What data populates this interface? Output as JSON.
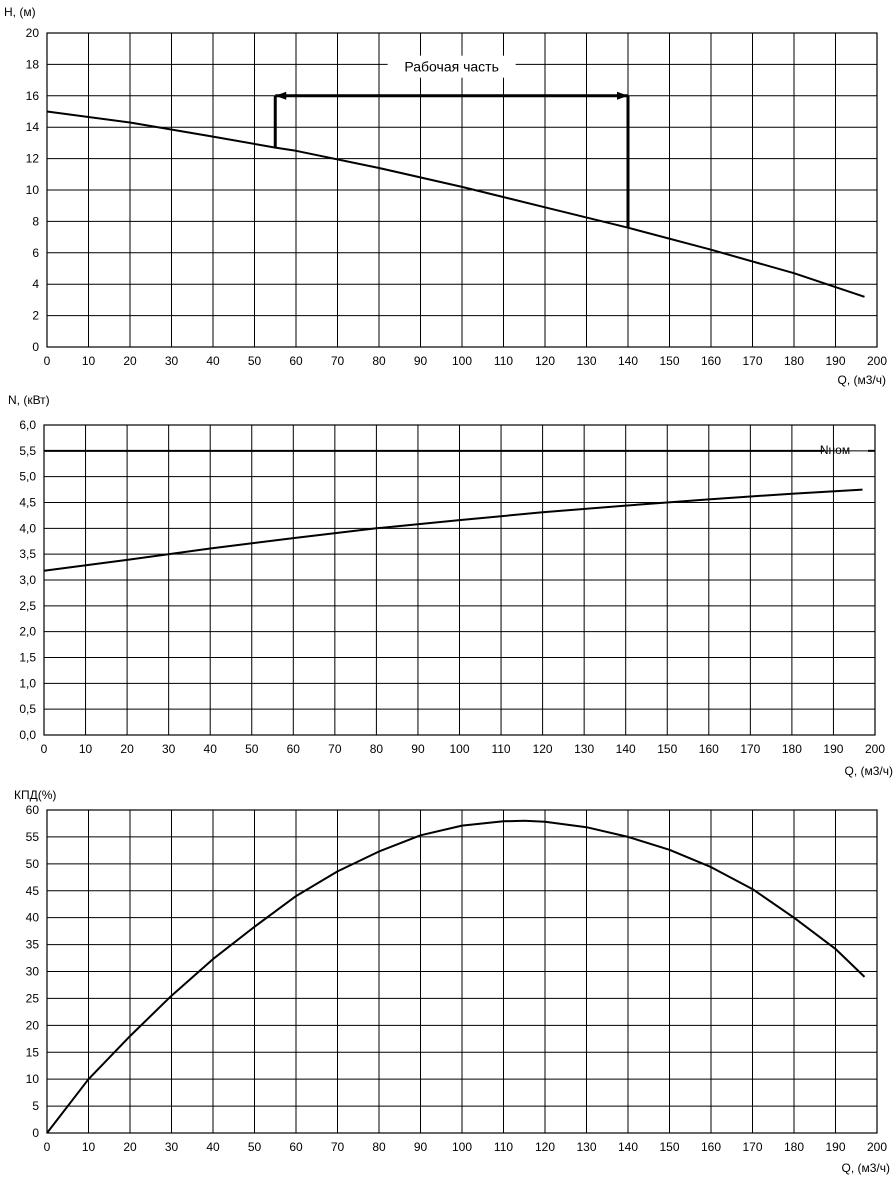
{
  "chart_data": [
    {
      "type": "line",
      "ylabel": "H, (м)",
      "xlabel": "Q, (м3/ч)",
      "xlim": [
        0,
        200
      ],
      "ylim": [
        0,
        20
      ],
      "x_ticks": [
        "0",
        "10",
        "20",
        "30",
        "40",
        "50",
        "60",
        "70",
        "80",
        "90",
        "100",
        "110",
        "120",
        "130",
        "140",
        "150",
        "160",
        "170",
        "180",
        "190",
        "200"
      ],
      "y_ticks": [
        "0",
        "2",
        "4",
        "6",
        "8",
        "10",
        "12",
        "14",
        "16",
        "18",
        "20"
      ],
      "grid": true,
      "series": [
        {
          "x": [
            0,
            20,
            40,
            55,
            60,
            80,
            100,
            120,
            140,
            160,
            180,
            197
          ],
          "y": [
            15.0,
            14.3,
            13.4,
            12.7,
            12.5,
            11.4,
            10.2,
            8.9,
            7.6,
            6.2,
            4.7,
            3.2
          ]
        }
      ],
      "annotations": [
        {
          "text": "Рабочая часть",
          "x_start": 55,
          "x_end": 140,
          "y": 16
        }
      ]
    },
    {
      "type": "line",
      "ylabel": "N, (кВт)",
      "xlabel": "Q, (м3/ч)",
      "xlim": [
        0,
        200
      ],
      "ylim": [
        0,
        6
      ],
      "x_ticks": [
        "0",
        "10",
        "20",
        "30",
        "40",
        "50",
        "60",
        "70",
        "80",
        "90",
        "100",
        "110",
        "120",
        "130",
        "140",
        "150",
        "160",
        "170",
        "180",
        "190",
        "200"
      ],
      "y_ticks": [
        "0,0",
        "0,5",
        "1,0",
        "1,5",
        "2,0",
        "2,5",
        "3,0",
        "3,5",
        "4,0",
        "4,5",
        "5,0",
        "5,5",
        "6,0"
      ],
      "grid": true,
      "series": [
        {
          "x": [
            0,
            20,
            40,
            60,
            80,
            100,
            120,
            140,
            160,
            180,
            197
          ],
          "y": [
            3.18,
            3.39,
            3.61,
            3.81,
            4.0,
            4.16,
            4.31,
            4.44,
            4.56,
            4.67,
            4.75
          ]
        }
      ],
      "reference_lines": [
        {
          "text": "Nном",
          "y": 5.5
        }
      ]
    },
    {
      "type": "line",
      "ylabel": "КПД(%)",
      "xlabel": "Q, (м3/ч)",
      "xlim": [
        0,
        200
      ],
      "ylim": [
        0,
        60
      ],
      "x_ticks": [
        "0",
        "10",
        "20",
        "30",
        "40",
        "50",
        "60",
        "70",
        "80",
        "90",
        "100",
        "110",
        "120",
        "130",
        "140",
        "150",
        "160",
        "170",
        "180",
        "190",
        "200"
      ],
      "y_ticks": [
        "0",
        "5",
        "10",
        "15",
        "20",
        "25",
        "30",
        "35",
        "40",
        "45",
        "50",
        "55",
        "60"
      ],
      "grid": true,
      "series": [
        {
          "x": [
            0,
            10,
            20,
            30,
            40,
            50,
            60,
            70,
            80,
            90,
            100,
            110,
            115,
            120,
            130,
            140,
            150,
            160,
            170,
            180,
            190,
            197
          ],
          "y": [
            0,
            10,
            18,
            25.5,
            32.3,
            38.3,
            44,
            48.6,
            52.3,
            55.3,
            57.1,
            57.9,
            58,
            57.8,
            56.8,
            55,
            52.6,
            49.4,
            45.3,
            40,
            34.2,
            29
          ]
        }
      ]
    }
  ]
}
